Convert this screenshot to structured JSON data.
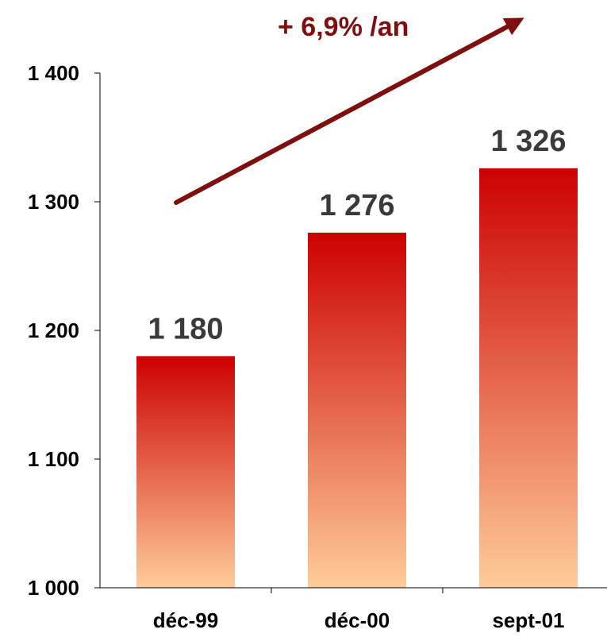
{
  "chart_data": {
    "type": "bar",
    "categories": [
      "déc-99",
      "déc-00",
      "sept-01"
    ],
    "values": [
      1180,
      1276,
      1326
    ],
    "value_labels": [
      "1 180",
      "1 276",
      "1 326"
    ],
    "ylim": [
      1000,
      1400
    ],
    "yticks": [
      1000,
      1100,
      1200,
      1300,
      1400
    ],
    "ytick_labels": [
      "1 000",
      "1 100",
      "1 200",
      "1 300",
      "1 400"
    ],
    "grid": false,
    "legend": "none",
    "annotation": {
      "text": "+ 6,9% /an",
      "type": "trend-arrow"
    },
    "colors": {
      "bar_top": "#cc0000",
      "bar_bottom": "#ffcc99",
      "trend": "#7f0f0f",
      "value_text": "#3a3a3a",
      "axis": "#000000"
    }
  }
}
